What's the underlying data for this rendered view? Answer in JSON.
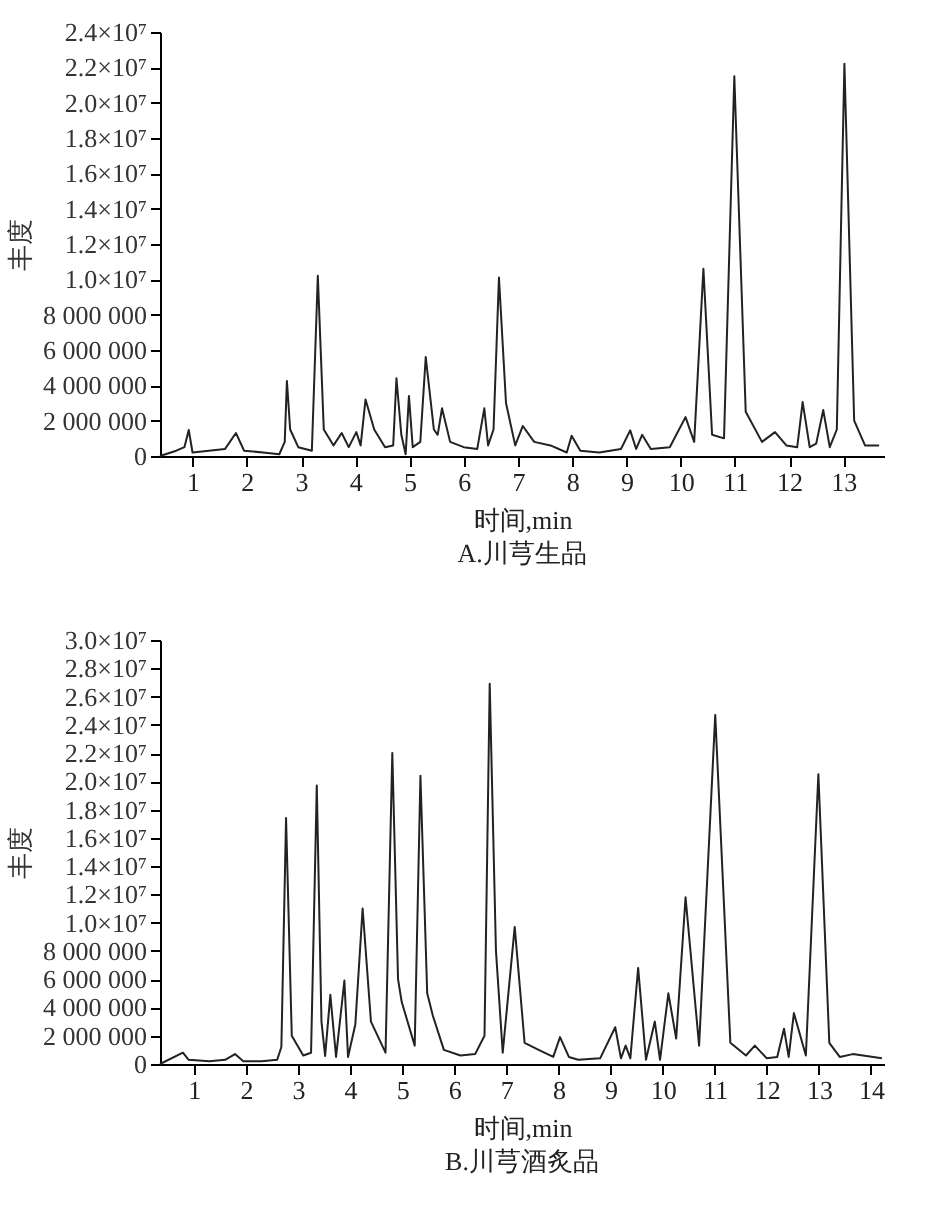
{
  "chart_data": [
    {
      "type": "line",
      "title": "A.川芎生品",
      "xlabel": "时间,min",
      "ylabel": "丰度",
      "xlim": [
        0.4,
        13.75
      ],
      "xticks": [
        1,
        2,
        3,
        4,
        5,
        6,
        7,
        8,
        9,
        10,
        11,
        12,
        13
      ],
      "ylim": [
        0,
        24000000
      ],
      "yticks": [
        0,
        {
          "value": 2000000,
          "label": "2 000 000"
        },
        {
          "value": 4000000,
          "label": "4 000 000"
        },
        {
          "value": 6000000,
          "label": "6 000 000"
        },
        {
          "value": 8000000,
          "label": "8 000 000"
        },
        {
          "value": 10000000,
          "label": "1.0×10⁷"
        },
        {
          "value": 12000000,
          "label": "1.2×10⁷"
        },
        {
          "value": 14000000,
          "label": "1.4×10⁷"
        },
        {
          "value": 16000000,
          "label": "1.6×10⁷"
        },
        {
          "value": 18000000,
          "label": "1.8×10⁷"
        },
        {
          "value": 20000000,
          "label": "2.0×10⁷"
        },
        {
          "value": 22000000,
          "label": "2.2×10⁷"
        },
        {
          "value": 24000000,
          "label": "2.4×10⁷"
        }
      ],
      "series": [
        {
          "color": "#222222",
          "x": [
            0.4,
            0.7,
            0.85,
            0.93,
            1.0,
            1.3,
            1.6,
            1.8,
            1.95,
            2.3,
            2.6,
            2.7,
            2.74,
            2.8,
            2.95,
            3.2,
            3.31,
            3.42,
            3.6,
            3.75,
            3.88,
            4.02,
            4.1,
            4.19,
            4.35,
            4.55,
            4.7,
            4.76,
            4.85,
            4.93,
            4.99,
            5.06,
            5.2,
            5.3,
            5.45,
            5.52,
            5.6,
            5.75,
            6.0,
            6.25,
            6.38,
            6.45,
            6.55,
            6.65,
            6.78,
            6.95,
            7.09,
            7.3,
            7.6,
            7.9,
            7.99,
            8.15,
            8.5,
            8.9,
            9.07,
            9.18,
            9.29,
            9.45,
            9.8,
            10.09,
            10.25,
            10.42,
            10.58,
            10.8,
            10.99,
            11.2,
            11.5,
            11.74,
            11.95,
            12.15,
            12.25,
            12.38,
            12.5,
            12.63,
            12.75,
            12.88,
            13.02,
            13.2,
            13.4,
            13.66
          ],
          "values": [
            0,
            300000,
            500000,
            1470000,
            200000,
            300000,
            400000,
            1300000,
            300000,
            200000,
            100000,
            800000,
            4250000,
            1500000,
            500000,
            300000,
            10200000,
            1500000,
            600000,
            1300000,
            500000,
            1350000,
            600000,
            3200000,
            1500000,
            500000,
            600000,
            4400000,
            1200000,
            100000,
            3400000,
            500000,
            800000,
            5600000,
            1500000,
            1200000,
            2700000,
            800000,
            500000,
            400000,
            2700000,
            600000,
            1500000,
            10100000,
            3000000,
            600000,
            1700000,
            800000,
            600000,
            200000,
            1150000,
            300000,
            200000,
            400000,
            1450000,
            400000,
            1200000,
            400000,
            500000,
            2200000,
            800000,
            10600000,
            1200000,
            1000000,
            21500000,
            2500000,
            800000,
            1350000,
            600000,
            500000,
            3050000,
            500000,
            700000,
            2600000,
            500000,
            1500000,
            22200000,
            2000000,
            600000,
            600000
          ]
        }
      ]
    },
    {
      "type": "line",
      "title": "B.川芎酒炙品",
      "xlabel": "时间,min",
      "ylabel": "丰度",
      "xlim": [
        0.35,
        14.25
      ],
      "xticks": [
        1,
        2,
        3,
        4,
        5,
        6,
        7,
        8,
        9,
        10,
        11,
        12,
        13,
        14
      ],
      "ylim": [
        0,
        30000000
      ],
      "yticks": [
        0,
        {
          "value": 2000000,
          "label": "2 000 000"
        },
        {
          "value": 4000000,
          "label": "4 000 000"
        },
        {
          "value": 6000000,
          "label": "6 000 000"
        },
        {
          "value": 8000000,
          "label": "8 000 000"
        },
        {
          "value": 10000000,
          "label": "1.0×10⁷"
        },
        {
          "value": 12000000,
          "label": "1.2×10⁷"
        },
        {
          "value": 14000000,
          "label": "1.4×10⁷"
        },
        {
          "value": 16000000,
          "label": "1.6×10⁷"
        },
        {
          "value": 18000000,
          "label": "1.8×10⁷"
        },
        {
          "value": 20000000,
          "label": "2.0×10⁷"
        },
        {
          "value": 22000000,
          "label": "2.2×10⁷"
        },
        {
          "value": 24000000,
          "label": "2.4×10⁷"
        },
        {
          "value": 26000000,
          "label": "2.6×10⁷"
        },
        {
          "value": 28000000,
          "label": "2.8×10⁷"
        },
        {
          "value": 30000000,
          "label": "3.0×10⁷"
        }
      ],
      "series": [
        {
          "color": "#222222",
          "x": [
            0.35,
            0.79,
            0.9,
            1.3,
            1.6,
            1.79,
            1.95,
            2.3,
            2.6,
            2.68,
            2.77,
            2.88,
            3.1,
            3.25,
            3.36,
            3.45,
            3.52,
            3.62,
            3.73,
            3.89,
            3.96,
            4.1,
            4.24,
            4.4,
            4.68,
            4.81,
            4.92,
            4.99,
            5.24,
            5.35,
            5.48,
            5.59,
            5.8,
            6.12,
            6.4,
            6.58,
            6.68,
            6.8,
            6.93,
            7.16,
            7.35,
            7.62,
            7.9,
            8.03,
            8.2,
            8.38,
            8.8,
            9.09,
            9.2,
            9.29,
            9.38,
            9.53,
            9.68,
            9.85,
            9.95,
            10.11,
            10.26,
            10.44,
            10.7,
            11.01,
            11.3,
            11.6,
            11.77,
            12.0,
            12.2,
            12.33,
            12.42,
            12.52,
            12.75,
            12.99,
            13.2,
            13.4,
            13.65,
            14.21
          ],
          "values": [
            0,
            800000,
            300000,
            200000,
            300000,
            700000,
            200000,
            200000,
            300000,
            1200000,
            17400000,
            2000000,
            600000,
            800000,
            19700000,
            3000000,
            570000,
            4900000,
            500000,
            5900000,
            500000,
            2800000,
            11000000,
            3000000,
            800000,
            22000000,
            6000000,
            4400000,
            1300000,
            20400000,
            5000000,
            3400000,
            1000000,
            600000,
            700000,
            2000000,
            26900000,
            8000000,
            800000,
            9700000,
            1500000,
            1000000,
            500000,
            1900000,
            500000,
            300000,
            400000,
            2600000,
            400000,
            1300000,
            400000,
            6800000,
            300000,
            3000000,
            300000,
            5000000,
            1800000,
            11800000,
            1300000,
            24700000,
            1500000,
            600000,
            1300000,
            400000,
            500000,
            2500000,
            500000,
            3600000,
            600000,
            20500000,
            1500000,
            500000,
            700000,
            400000
          ]
        }
      ]
    }
  ]
}
